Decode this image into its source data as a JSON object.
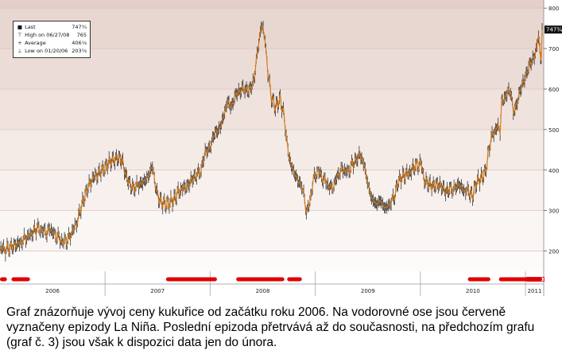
{
  "chart_data": {
    "type": "line",
    "ylim": [
      150,
      820
    ],
    "yticks": [
      200,
      300,
      400,
      500,
      600,
      700,
      800
    ],
    "ytick_labels": [
      "200",
      "300",
      "400",
      "500",
      "600",
      "700",
      "800"
    ],
    "xtick_labels": [
      "2006",
      "2007",
      "2008",
      "2009",
      "2010",
      "2011"
    ],
    "x_start": "2006-01-01",
    "x_end": "2011-02-28",
    "last_label": "747¾",
    "legend": [
      {
        "symbol": "■",
        "label": "Last",
        "value": "747¾"
      },
      {
        "symbol": "⊤",
        "label": "High on 06/27/08",
        "value": "765"
      },
      {
        "symbol": "+",
        "label": "Average",
        "value": "406⅛"
      },
      {
        "symbol": "⊥",
        "label": "Low on 01/20/06",
        "value": "203⅝"
      }
    ],
    "series": [
      {
        "values": [
          [
            "2006-01-01",
            205
          ],
          [
            "2006-01-20",
            204
          ],
          [
            "2006-02-15",
            212
          ],
          [
            "2006-03-10",
            220
          ],
          [
            "2006-04-01",
            232
          ],
          [
            "2006-04-25",
            245
          ],
          [
            "2006-05-10",
            258
          ],
          [
            "2006-05-25",
            250
          ],
          [
            "2006-06-10",
            245
          ],
          [
            "2006-06-25",
            255
          ],
          [
            "2006-07-10",
            240
          ],
          [
            "2006-07-25",
            232
          ],
          [
            "2006-08-10",
            223
          ],
          [
            "2006-08-25",
            228
          ],
          [
            "2006-09-15",
            255
          ],
          [
            "2006-10-01",
            285
          ],
          [
            "2006-10-15",
            320
          ],
          [
            "2006-11-01",
            355
          ],
          [
            "2006-11-15",
            375
          ],
          [
            "2006-12-01",
            385
          ],
          [
            "2006-12-15",
            395
          ],
          [
            "2007-01-01",
            405
          ],
          [
            "2007-01-15",
            420
          ],
          [
            "2007-02-01",
            425
          ],
          [
            "2007-02-15",
            430
          ],
          [
            "2007-03-01",
            425
          ],
          [
            "2007-03-15",
            385
          ],
          [
            "2007-04-01",
            360
          ],
          [
            "2007-04-15",
            355
          ],
          [
            "2007-05-01",
            365
          ],
          [
            "2007-05-15",
            370
          ],
          [
            "2007-06-01",
            385
          ],
          [
            "2007-06-15",
            410
          ],
          [
            "2007-07-01",
            340
          ],
          [
            "2007-07-15",
            320
          ],
          [
            "2007-08-01",
            315
          ],
          [
            "2007-08-15",
            320
          ],
          [
            "2007-09-01",
            330
          ],
          [
            "2007-09-15",
            350
          ],
          [
            "2007-10-01",
            355
          ],
          [
            "2007-10-15",
            360
          ],
          [
            "2007-11-01",
            380
          ],
          [
            "2007-11-15",
            385
          ],
          [
            "2007-12-01",
            400
          ],
          [
            "2007-12-15",
            445
          ],
          [
            "2008-01-01",
            455
          ],
          [
            "2008-01-15",
            490
          ],
          [
            "2008-02-01",
            500
          ],
          [
            "2008-02-15",
            525
          ],
          [
            "2008-03-01",
            570
          ],
          [
            "2008-03-15",
            555
          ],
          [
            "2008-04-01",
            590
          ],
          [
            "2008-04-15",
            595
          ],
          [
            "2008-05-01",
            600
          ],
          [
            "2008-05-15",
            595
          ],
          [
            "2008-06-01",
            620
          ],
          [
            "2008-06-15",
            700
          ],
          [
            "2008-06-27",
            755
          ],
          [
            "2008-07-10",
            730
          ],
          [
            "2008-07-20",
            640
          ],
          [
            "2008-08-01",
            580
          ],
          [
            "2008-08-15",
            555
          ],
          [
            "2008-09-01",
            575
          ],
          [
            "2008-09-15",
            530
          ],
          [
            "2008-10-01",
            430
          ],
          [
            "2008-10-15",
            400
          ],
          [
            "2008-11-01",
            375
          ],
          [
            "2008-11-15",
            360
          ],
          [
            "2008-12-01",
            300
          ],
          [
            "2008-12-10",
            310
          ],
          [
            "2008-12-25",
            375
          ],
          [
            "2009-01-10",
            400
          ],
          [
            "2009-01-25",
            380
          ],
          [
            "2009-02-10",
            365
          ],
          [
            "2009-02-25",
            355
          ],
          [
            "2009-03-10",
            370
          ],
          [
            "2009-03-25",
            395
          ],
          [
            "2009-04-10",
            400
          ],
          [
            "2009-04-25",
            395
          ],
          [
            "2009-05-10",
            415
          ],
          [
            "2009-05-25",
            425
          ],
          [
            "2009-06-05",
            440
          ],
          [
            "2009-06-20",
            410
          ],
          [
            "2009-07-01",
            370
          ],
          [
            "2009-07-15",
            330
          ],
          [
            "2009-08-01",
            315
          ],
          [
            "2009-08-15",
            325
          ],
          [
            "2009-09-01",
            305
          ],
          [
            "2009-09-15",
            315
          ],
          [
            "2009-10-01",
            330
          ],
          [
            "2009-10-15",
            370
          ],
          [
            "2009-11-01",
            385
          ],
          [
            "2009-11-15",
            390
          ],
          [
            "2009-12-01",
            400
          ],
          [
            "2009-12-15",
            410
          ],
          [
            "2010-01-05",
            415
          ],
          [
            "2010-01-15",
            375
          ],
          [
            "2010-02-01",
            365
          ],
          [
            "2010-02-15",
            360
          ],
          [
            "2010-03-01",
            365
          ],
          [
            "2010-03-15",
            360
          ],
          [
            "2010-04-01",
            345
          ],
          [
            "2010-04-15",
            355
          ],
          [
            "2010-05-01",
            355
          ],
          [
            "2010-05-15",
            365
          ],
          [
            "2010-06-01",
            350
          ],
          [
            "2010-06-20",
            345
          ],
          [
            "2010-07-01",
            335
          ],
          [
            "2010-07-15",
            370
          ],
          [
            "2010-08-01",
            380
          ],
          [
            "2010-08-15",
            395
          ],
          [
            "2010-09-01",
            470
          ],
          [
            "2010-09-10",
            490
          ],
          [
            "2010-09-25",
            505
          ],
          [
            "2010-10-05",
            500
          ],
          [
            "2010-10-10",
            560
          ],
          [
            "2010-10-20",
            580
          ],
          [
            "2010-11-01",
            590
          ],
          [
            "2010-11-10",
            600
          ],
          [
            "2010-11-20",
            540
          ],
          [
            "2010-12-01",
            560
          ],
          [
            "2010-12-15",
            600
          ],
          [
            "2011-01-01",
            630
          ],
          [
            "2011-01-15",
            660
          ],
          [
            "2011-02-01",
            680
          ],
          [
            "2011-02-10",
            710
          ],
          [
            "2011-02-15",
            735
          ],
          [
            "2011-02-20",
            690
          ],
          [
            "2011-02-25",
            680
          ],
          [
            "2011-02-28",
            747
          ]
        ]
      }
    ],
    "la_nina_episodes": [
      [
        "2006-01-01",
        "2006-01-25"
      ],
      [
        "2006-02-10",
        "2006-04-15"
      ],
      [
        "2007-08-01",
        "2008-01-25"
      ],
      [
        "2008-04-01",
        "2008-09-15"
      ],
      [
        "2008-09-25",
        "2008-11-15"
      ],
      [
        "2010-06-15",
        "2010-09-01"
      ],
      [
        "2010-10-01",
        "2011-02-28"
      ]
    ],
    "colors": {
      "line": "#d97a10",
      "candle": "#1a1a1a",
      "episode": "#e00000",
      "axis_text": "#222222"
    }
  },
  "caption": "Graf znázorňuje vývoj ceny kukuřice od začátku roku 2006. Na vodorovné ose jsou červeně vyznačeny epizody La Niña. Poslední epizoda přetrvává až do současnosti, na předchozím grafu (graf č. 3) jsou však k dispozici data jen do února."
}
